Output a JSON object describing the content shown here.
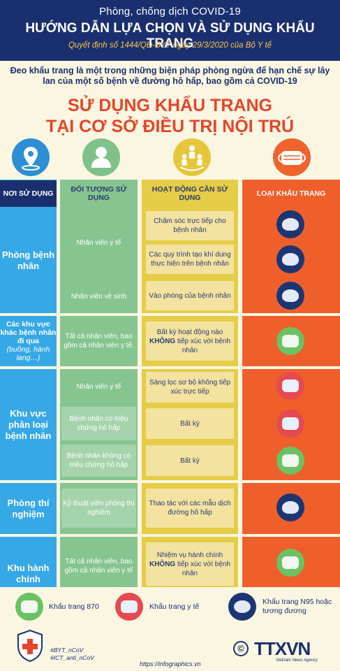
{
  "header": {
    "top": "Phòng, chống dịch COVID-19",
    "title": "Hướng dẫn lựa chọn và sử dụng khẩu trang",
    "decision": "Quyết định số 1444/QĐ-BYT ngày 29/3/2020 của Bộ Y tế"
  },
  "intro": "Đeo khẩu trang là một trong những biện pháp phòng ngừa để hạn chế sự lây lan của một số bệnh về đường hô hấp, bao gồm cả COVID-19",
  "title_line1": "SỬ DỤNG KHẨU TRANG",
  "title_line2": "TẠI CƠ SỞ ĐIỀU TRỊ NỘI TRÚ",
  "icons": [
    "location-pin-icon",
    "user-icon",
    "people-activity-icon",
    "mask-icon"
  ],
  "columns": {
    "location": "NƠI SỬ DỤNG",
    "target": "ĐỐI TƯỢNG SỬ DỤNG",
    "activity": "HOẠT ĐỘNG CẦN SỬ DỤNG",
    "mask": "LOẠI KHẨU TRANG"
  },
  "sections": [
    {
      "location": "Phòng bệnh nhân",
      "rows": [
        {
          "target": "Nhân viên y tế",
          "activity": "Chăm sóc trực tiếp cho bệnh nhân",
          "mask": "N95"
        },
        {
          "target": "",
          "activity": "Các quy trình tạo khí dung thực hiện trên bệnh nhân",
          "mask": "N95"
        },
        {
          "target": "Nhân viên vệ sinh",
          "activity": "Vào phòng của bệnh nhân",
          "mask": "N95"
        }
      ]
    },
    {
      "location": "Các khu vực khác bệnh nhân đi qua",
      "location_note": "(buồng, hành lang…)",
      "rows": [
        {
          "target": "Tất cả nhân viên, bao gồm cả nhân viên y tế.",
          "activity_a": "Bất kỳ hoạt động nào",
          "activity_b": "KHÔNG",
          "activity_c": "tiếp xúc với bệnh nhân",
          "mask": "870"
        }
      ]
    },
    {
      "location": "Khu vực phân loại bệnh nhân",
      "rows": [
        {
          "target": "Nhân viên y tế",
          "activity": "Sàng lọc sơ bộ không tiếp xúc trực tiếp",
          "mask": "Y tế"
        },
        {
          "target": "Bệnh nhân có triệu chứng hô hấp",
          "activity": "Bất kỳ",
          "mask": "Y tế"
        },
        {
          "target": "Bệnh nhân không có triệu chứng hô hấp",
          "activity": "Bất kỳ",
          "mask": "870"
        }
      ]
    },
    {
      "location": "Phòng thí nghiệm",
      "rows": [
        {
          "target": "Kỹ thuật viên phòng thí nghiệm",
          "activity": "Thao tác với các mẫu dịch đường hô hấp",
          "mask": "N95"
        }
      ]
    },
    {
      "location": "Khu hành chính",
      "rows": [
        {
          "target": "Tất cả nhân viên, bao gồm cả nhân viên y tế",
          "activity_a": "Nhiệm vụ hành chính",
          "activity_b": "KHÔNG",
          "activity_c": "tiếp xúc với bệnh nhân",
          "mask": "870"
        }
      ]
    }
  ],
  "legend": {
    "m870": "Khẩu trang 870",
    "med": "Khẩu trang y tế",
    "n95": "Khẩu trang N95 hoặc tương đương"
  },
  "footer": {
    "tag1": "#BYT_nCoV",
    "tag2": "#ICT_anti_nCoV",
    "url": "https://infographics.vn",
    "copyright": "©",
    "brand": "TTXVN",
    "brand_sub": "Vietnam News Agency",
    "moh_label": "BỘ Y TẾ"
  },
  "colors": {
    "navy": "#1a2f6e",
    "blue": "#37a8e6",
    "green": "#86c58f",
    "yellow": "#e5cd47",
    "orange": "#ef5f2c",
    "red_title": "#e5452a"
  }
}
